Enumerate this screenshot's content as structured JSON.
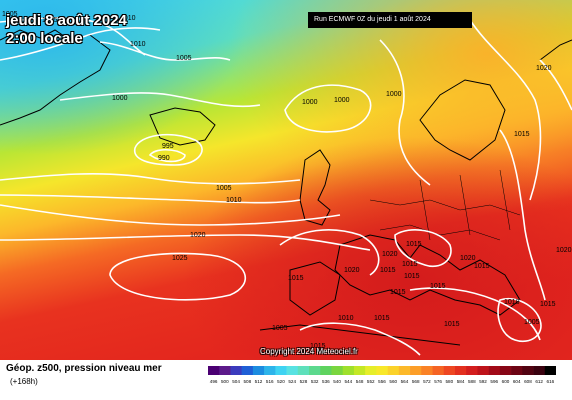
{
  "header": {
    "date_label": "jeudi 8 août 2024",
    "time_label": "2:00 locale",
    "run_label": "Run ECMWF 0Z du jeudi 1 août 2024"
  },
  "copyright": "Copyright 2024 Meteociel.fr",
  "legend": {
    "title": "Géop. z500, pression niveau mer",
    "subtitle": "(+168h)",
    "scale_values": [
      "496",
      "500",
      "504",
      "508",
      "512",
      "516",
      "520",
      "524",
      "528",
      "532",
      "536",
      "540",
      "544",
      "548",
      "552",
      "556",
      "560",
      "564",
      "568",
      "572",
      "576",
      "580",
      "584",
      "588",
      "592",
      "596",
      "600",
      "604",
      "608",
      "612",
      "616"
    ],
    "scale_colors": [
      "#4b0073",
      "#5c1a8a",
      "#3b3bbd",
      "#1f5fd6",
      "#1c8ce0",
      "#2db4ea",
      "#3fd3f2",
      "#58e2e2",
      "#5ee0bb",
      "#5cd98e",
      "#5fd35f",
      "#7ad63f",
      "#9fe02c",
      "#c4e826",
      "#e6ee2a",
      "#f8e82a",
      "#fbd22a",
      "#fcb92a",
      "#fc9e28",
      "#fa8226",
      "#f56424",
      "#ee4722",
      "#e3301f",
      "#d31e1e",
      "#be131a",
      "#a20a18",
      "#870616",
      "#6d0414",
      "#520312",
      "#3a0210",
      "#000000"
    ]
  },
  "isobars": [
    {
      "label": "1005"
    },
    {
      "label": "1005"
    },
    {
      "label": "1010"
    },
    {
      "label": "1010"
    },
    {
      "label": "1005"
    },
    {
      "label": "1000"
    },
    {
      "label": "1000"
    },
    {
      "label": "1000"
    },
    {
      "label": "1000"
    },
    {
      "label": "995"
    },
    {
      "label": "990"
    },
    {
      "label": "1020"
    },
    {
      "label": "1015"
    },
    {
      "label": "1005"
    },
    {
      "label": "1010"
    },
    {
      "label": "1020"
    },
    {
      "label": "1025"
    },
    {
      "label": "1015"
    },
    {
      "label": "1020"
    },
    {
      "label": "1020"
    },
    {
      "label": "1020"
    },
    {
      "label": "1015"
    },
    {
      "label": "1015"
    },
    {
      "label": "1015"
    },
    {
      "label": "1015"
    },
    {
      "label": "1015"
    },
    {
      "label": "1015"
    },
    {
      "label": "1015"
    },
    {
      "label": "1010"
    },
    {
      "label": "1005"
    },
    {
      "label": "1015"
    },
    {
      "label": "1015"
    },
    {
      "label": "1015"
    },
    {
      "label": "1010"
    },
    {
      "label": "1005"
    },
    {
      "label": "1015"
    },
    {
      "label": "1020"
    }
  ]
}
